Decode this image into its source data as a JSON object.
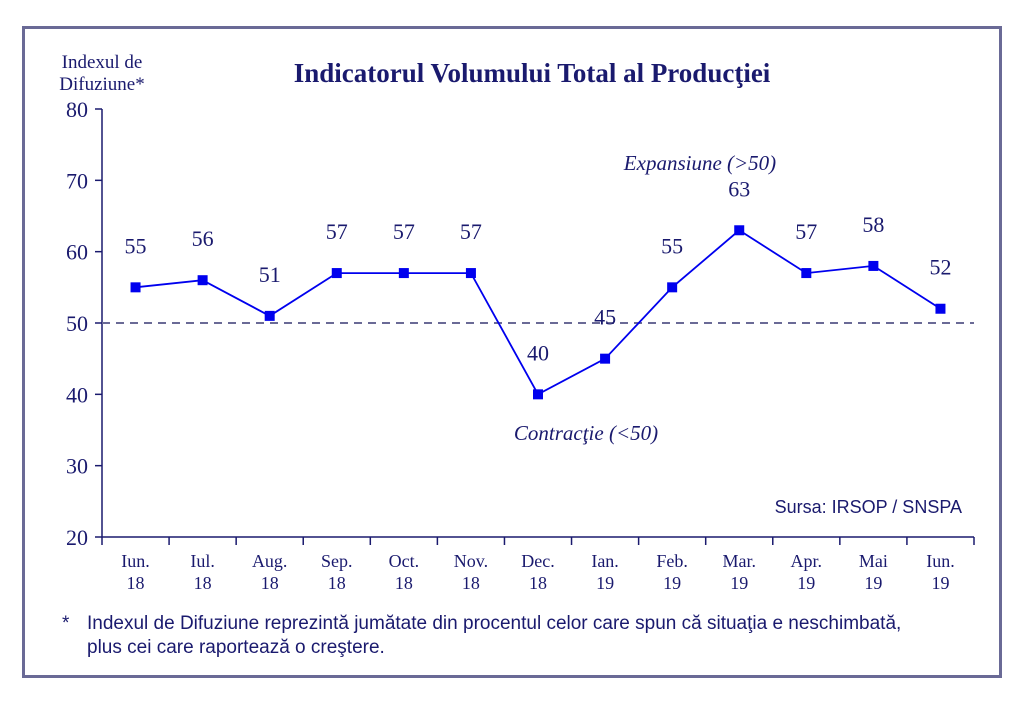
{
  "chart_data": {
    "type": "line",
    "title": "Indicatorul Volumului Total al Producţiei",
    "ylabel_lines": [
      "Indexul de",
      "Difuziune*"
    ],
    "ylim": [
      20,
      80
    ],
    "yticks": [
      20,
      30,
      40,
      50,
      60,
      70,
      80
    ],
    "reference_line": 50,
    "grid": false,
    "categories": [
      [
        "Iun.",
        "18"
      ],
      [
        "Iul.",
        "18"
      ],
      [
        "Aug.",
        "18"
      ],
      [
        "Sep.",
        "18"
      ],
      [
        "Oct.",
        "18"
      ],
      [
        "Nov.",
        "18"
      ],
      [
        "Dec.",
        "18"
      ],
      [
        "Ian.",
        "19"
      ],
      [
        "Feb.",
        "19"
      ],
      [
        "Mar.",
        "19"
      ],
      [
        "Apr.",
        "19"
      ],
      [
        "Mai",
        "19"
      ],
      [
        "Iun.",
        "19"
      ]
    ],
    "series": [
      {
        "values": [
          55,
          56,
          51,
          57,
          57,
          57,
          40,
          45,
          55,
          63,
          57,
          58,
          52
        ]
      }
    ],
    "annotations": {
      "expansion": "Expansiune (>50)",
      "contraction": "Contracţie (<50)",
      "source": "Sursa: IRSOP / SNSPA"
    },
    "colors": {
      "line": "#0000ee",
      "text": "#1a1a6e",
      "axis": "#1a1a6e",
      "reference": "#6a6a96",
      "frame": "#6a6a96"
    }
  },
  "footnote": {
    "marker": "*",
    "text": "Indexul de Difuziune reprezintă jumătate din procentul celor care spun că situaţia e neschimbată, plus cei care raportează o creştere."
  }
}
